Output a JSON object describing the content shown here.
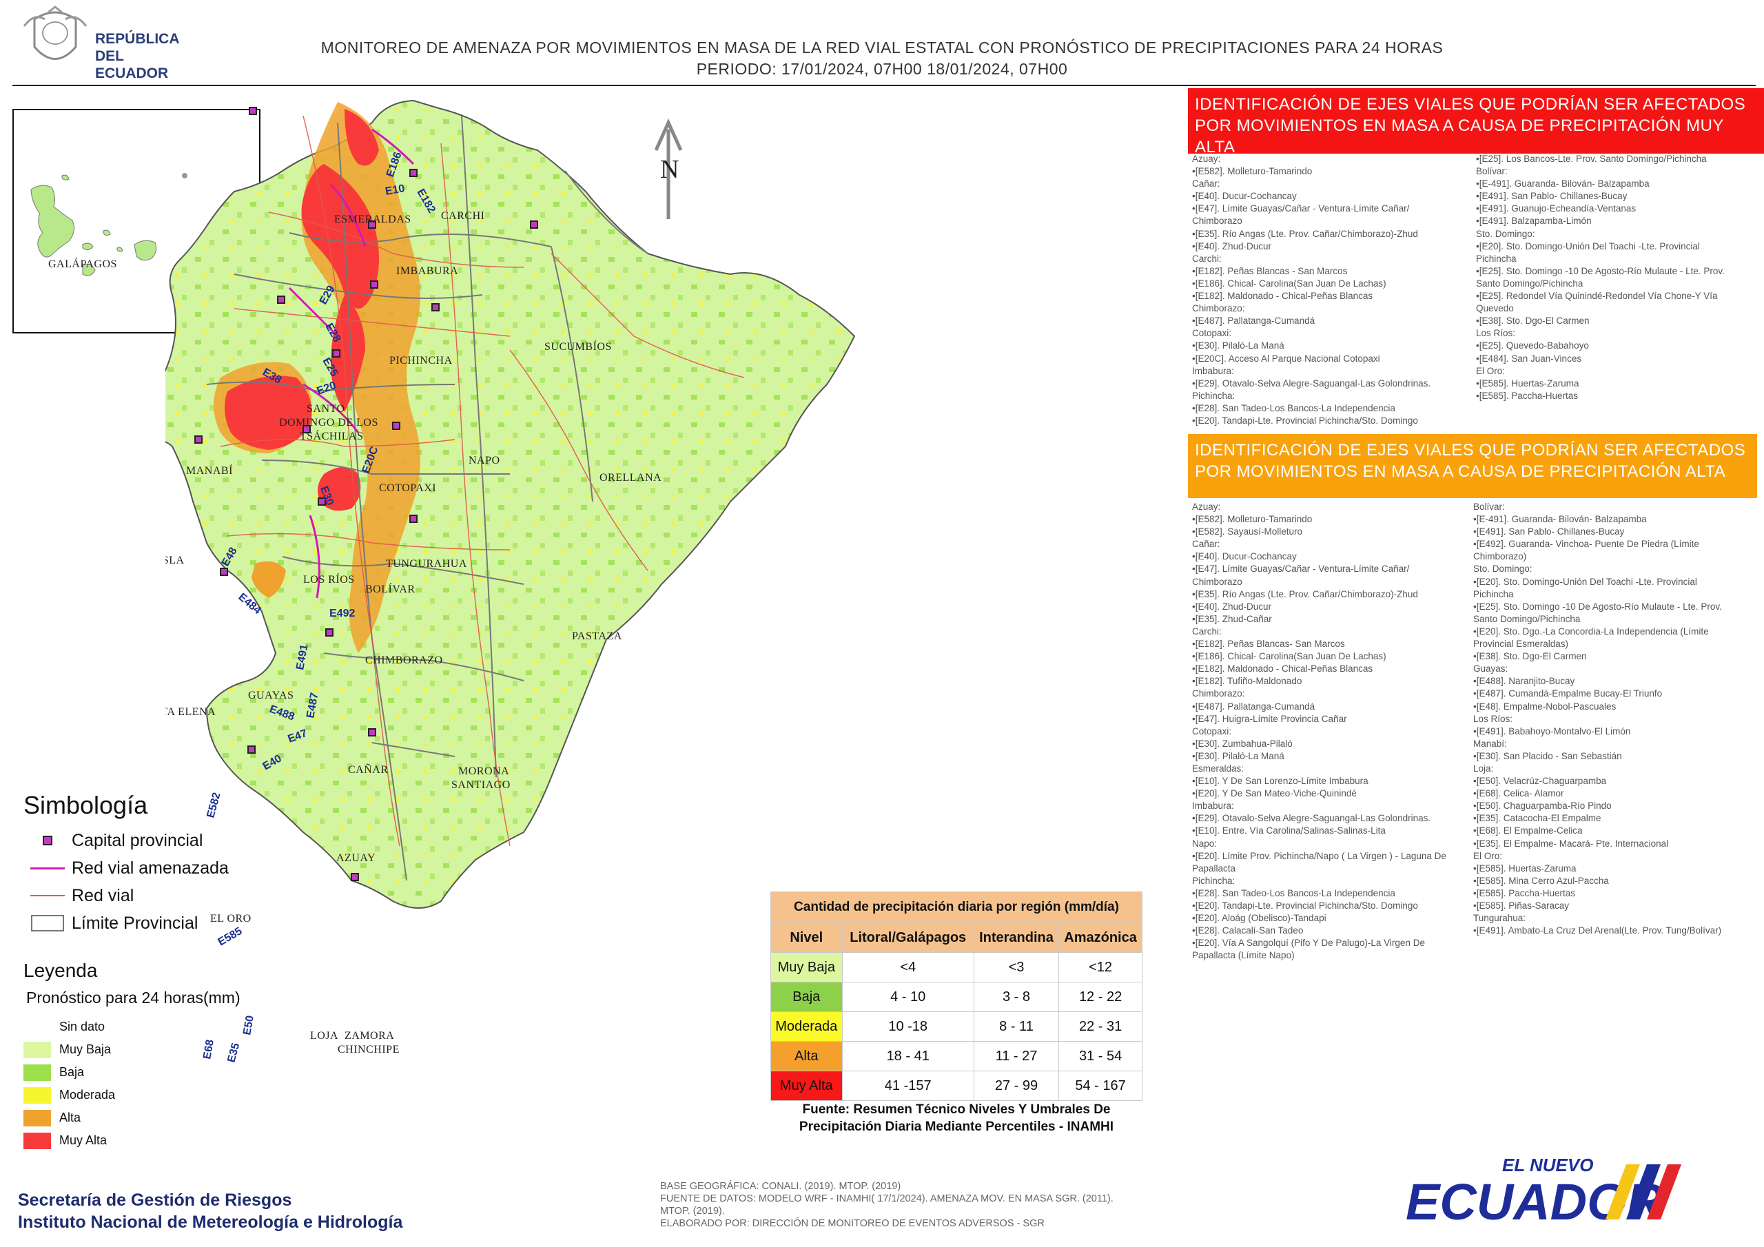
{
  "header": {
    "logo_text_line1": "REPÚBLICA",
    "logo_text_line2": "DEL ECUADOR",
    "title_line1": "MONITOREO DE AMENAZA POR MOVIMIENTOS EN MASA DE LA RED VIAL ESTATAL CON PRONÓSTICO DE PRECIPITACIONES PARA 24 HORAS",
    "title_line2": "PERIODO: 17/01/2024, 07H00 18/01/2024, 07H00"
  },
  "inset": {
    "label": "GALÁPAGOS"
  },
  "map": {
    "north_label": "N",
    "provinces": {
      "esmeraldas": "ESMERALDAS",
      "carchi": "CARCHI",
      "imbabura": "IMBABURA",
      "sucumbios": "SUCUMBÍOS",
      "pichincha": "PICHINCHA",
      "santo_domingo_1": "SANTO",
      "santo_domingo_2": "DOMINGO DE LOS",
      "santo_domingo_3": "TSÁCHILAS",
      "manabi": "MANABÍ",
      "napo": "NAPO",
      "orellana": "ORELLANA",
      "cotopaxi": "COTOPAXI",
      "isla": "ISLA",
      "tungurahua": "TUNGURAHUA",
      "los_rios": "LOS RÍOS",
      "bolivar": "BOLÍVAR",
      "pastaza": "PASTAZA",
      "chimborazo": "CHIMBORAZO",
      "santa_elena": "SANTA ELENA",
      "guayas": "GUAYAS",
      "canar": "CAÑAR",
      "morona_1": "MORONA",
      "morona_2": "SANTIAGO",
      "azuay": "AZUAY",
      "el_oro": "EL ORO",
      "loja": "LOJA",
      "zamora_1": "ZAMORA",
      "zamora_2": "CHINCHIPE"
    },
    "roads": {
      "e10": "E10",
      "e186": "E186",
      "e182": "E182",
      "e29": "E29",
      "e28": "E28",
      "e38": "E38",
      "e25": "E25",
      "e20": "E20",
      "e20c": "E20C",
      "e30": "E30",
      "e48": "E48",
      "e484": "E484",
      "e492": "E492",
      "e491": "E491",
      "e487": "E487",
      "e488": "E488",
      "e47": "E47",
      "e40": "E40",
      "e582": "E582",
      "e585": "E585",
      "e50": "E50",
      "e35": "E35",
      "e68": "E68"
    }
  },
  "symbology": {
    "title": "Simbología",
    "items": [
      {
        "label": "Capital provincial"
      },
      {
        "label": "Red vial amenazada"
      },
      {
        "label": "Red vial"
      },
      {
        "label": "Límite Provincial"
      }
    ]
  },
  "legend": {
    "title": "Leyenda",
    "subtitle": "Pronóstico para 24 horas(mm)",
    "items": [
      {
        "label": "Sin dato",
        "color": "#ffffff"
      },
      {
        "label": "Muy Baja",
        "color": "#dcf7a0"
      },
      {
        "label": "Baja",
        "color": "#9be04a"
      },
      {
        "label": "Moderada",
        "color": "#f5f530"
      },
      {
        "label": "Alta",
        "color": "#f0a22e"
      },
      {
        "label": "Muy Alta",
        "color": "#f83a3a"
      }
    ]
  },
  "precip_table": {
    "caption": "Cantidad de precipitación diaria por región (mm/día)",
    "headers": [
      "Nivel",
      "Litoral/Galápagos",
      "Interandina",
      "Amazónica"
    ],
    "rows": [
      {
        "level": "Muy Baja",
        "color": "#dcf7a0",
        "litoral": "<4",
        "interandina": "<3",
        "amazonica": "<12"
      },
      {
        "level": "Baja",
        "color": "#8dd04a",
        "litoral": "4 - 10",
        "interandina": "3 - 8",
        "amazonica": "12 - 22"
      },
      {
        "level": "Moderada",
        "color": "#fafa2a",
        "litoral": "10 -18",
        "interandina": "8 - 11",
        "amazonica": "22 - 31"
      },
      {
        "level": "Alta",
        "color": "#f5a02c",
        "litoral": "18 - 41",
        "interandina": "11 - 27",
        "amazonica": "31 - 54"
      },
      {
        "level": "Muy Alta",
        "color": "#f81818",
        "litoral": "41 -157",
        "interandina": "27 - 99",
        "amazonica": "54 - 167"
      }
    ],
    "source_line1": "Fuente: Resumen Técnico Niveles Y Umbrales De",
    "source_line2": "Precipitación Diaria Mediante Percentiles - INAMHI"
  },
  "panel_muy_alta": {
    "title": "IDENTIFICACIÓN DE EJES VIALES QUE PODRÍAN SER AFECTADOS POR MOVIMIENTOS EN MASA A CAUSA DE PRECIPITACIÓN MUY ALTA",
    "col1": [
      "Azuay:",
      "•[E582]. Molleturo-Tamarindo",
      "Cañar:",
      "•[E40]. Ducur-Cochancay",
      "•[E47]. Límite Guayas/Cañar - Ventura-Límite Cañar/",
      "Chimborazo",
      "•[E35]. Río Angas (Lte. Prov. Cañar/Chimborazo)-Zhud",
      "•[E40]. Zhud-Ducur",
      "Carchi:",
      "•[E182]. Peñas Blancas - San Marcos",
      "•[E186]. Chical- Carolina(San Juan De Lachas)",
      "•[E182]. Maldonado - Chical-Peñas Blancas",
      "Chimborazo:",
      "•[E487]. Pallatanga-Cumandá",
      "Cotopaxi:",
      "•[E30]. Pilaló-La Maná",
      "•[E20C]. Acceso Al Parque Nacional Cotopaxi",
      "Imbabura:",
      "•[E29]. Otavalo-Selva Alegre-Saguangal-Las Golondrinas.",
      "Pichincha:",
      "•[E28]. San Tadeo-Los Bancos-La Independencia",
      "•[E20]. Tandapi-Lte. Provincial Pichincha/Sto. Domingo"
    ],
    "col2": [
      "•[E25]. Los Bancos-Lte. Prov. Santo Domingo/Pichincha",
      "Bolívar:",
      "•[E-491]. Guaranda- Bilován- Balzapamba",
      "•[E491]. San Pablo- Chillanes-Bucay",
      "•[E491]. Guanujo-Echeandía-Ventanas",
      "•[E491]. Balzapamba-Limón",
      "Sto. Domingo:",
      "•[E20]. Sto. Domingo-Unión Del Toachi -Lte. Provincial",
      "Pichincha",
      "•[E25]. Sto. Domingo -10 De Agosto-Río Mulaute - Lte. Prov.",
      "Santo Domingo/Pichincha",
      "•[E25]. Redondel Vía Quinindé-Redondel Vía Chone-Y Vía",
      "Quevedo",
      "•[E38]. Sto. Dgo-El Carmen",
      "Los Ríos:",
      "•[E25]. Quevedo-Babahoyo",
      "•[E484]. San Juan-Vinces",
      "El Oro:",
      "•[E585]. Huertas-Zaruma",
      "•[E585]. Paccha-Huertas"
    ]
  },
  "panel_alta": {
    "title": "IDENTIFICACIÓN DE EJES VIALES QUE PODRÍAN SER AFECTADOS POR MOVIMIENTOS EN MASA A CAUSA DE PRECIPITACIÓN ALTA",
    "col1": [
      "Azuay:",
      "•[E582]. Molleturo-Tamarindo",
      "•[E582]. Sayausí-Molleturo",
      "Cañar:",
      "•[E40]. Ducur-Cochancay",
      "•[E47]. Límite Guayas/Cañar - Ventura-Límite Cañar/",
      "Chimborazo",
      "•[E35]. Río Angas (Lte. Prov. Cañar/Chimborazo)-Zhud",
      "•[E40]. Zhud-Ducur",
      "•[E35]. Zhud-Cañar",
      "Carchi:",
      "•[E182]. Peñas Blancas- San Marcos",
      "•[E186]. Chical- Carolina(San Juan De Lachas)",
      "•[E182]. Maldonado - Chical-Peñas Blancas",
      "•[E182]. Tufiño-Maldonado",
      "Chimborazo:",
      "•[E487]. Pallatanga-Cumandá",
      "•[E47]. Huigra-Límite Provincia Cañar",
      "Cotopaxi:",
      "•[E30]. Zumbahua-Pilaló",
      "•[E30]. Pilaló-La Maná",
      "Esmeraldas:",
      "•[E10]. Y De San Lorenzo-Límite Imbabura",
      "•[E20]. Y De San Mateo-Viche-Quinindé",
      "Imbabura:",
      "•[E29]. Otavalo-Selva Alegre-Saguangal-Las Golondrinas.",
      "•[E10]. Entre. Vía Carolina/Salinas-Salinas-Lita",
      "Napo:",
      "•[E20]. Límite Prov. Pichincha/Napo ( La Virgen ) - Laguna De",
      "Papallacta",
      "Pichincha:",
      "•[E28]. San Tadeo-Los Bancos-La Independencia",
      "•[E20]. Tandapi-Lte. Provincial Pichincha/Sto. Domingo",
      "•[E20]. Aloág (Obelisco)-Tandapi",
      "•[E28]. Calacalí-San Tadeo",
      "•[E20]. Vía A Sangolquí (Pifo Y De Palugo)-La Virgen De",
      "Papallacta (Límite Napo)"
    ],
    "col2": [
      "Bolívar:",
      "•[E-491]. Guaranda- Bilován- Balzapamba",
      "•[E491]. San Pablo- Chillanes-Bucay",
      "•[E492]. Guaranda- Vinchoa- Puente De Piedra (Límite",
      "Chimborazo)",
      "Sto. Domingo:",
      "•[E20]. Sto. Domingo-Unión Del Toachi -Lte. Provincial",
      "Pichincha",
      "•[E25]. Sto. Domingo -10 De Agosto-Río Mulaute - Lte. Prov.",
      "Santo Domingo/Pichincha",
      "•[E20]. Sto. Dgo.-La Concordia-La Independencia (Límite",
      "Provincial Esmeraldas)",
      "•[E38]. Sto. Dgo-El Carmen",
      "Guayas:",
      "•[E488]. Naranjito-Bucay",
      "•[E487]. Cumandá-Empalme Bucay-El Triunfo",
      "•[E48]. Empalme-Nobol-Pascuales",
      "Los Ríos:",
      "•[E491]. Babahoyo-Montalvo-El Limón",
      "Manabí:",
      "•[E30]. San Placido - San Sebastián",
      "Loja:",
      "•[E50]. Velacrúz-Chaguarpamba",
      "•[E68]. Celica- Alamor",
      "•[E50]. Chaguarpamba-Río Pindo",
      "•[E35]. Catacocha-El Empalme",
      "•[E68]. El Empalme-Celica",
      "•[E35]. El Empalme- Macará- Pte. Internacional",
      "El Oro:",
      "•[E585]. Huertas-Zaruma",
      "•[E585]. Mina Cerro Azul-Paccha",
      "•[E585]. Paccha-Huertas",
      "•[E585]. Piñas-Saracay",
      "Tungurahua:",
      "•[E491]. Ambato-La Cruz Del Arenal(Lte. Prov. Tung/Bolívar)"
    ]
  },
  "footer": {
    "org_line1": "Secretaría de Gestión de Riesgos",
    "org_line2": "Instituto Nacional de Metereología e Hidrología",
    "base_line1": "BASE GEOGRÁFICA: CONALI. (2019). MTOP. (2019)",
    "base_line2": "FUENTE DE DATOS: MODELO WRF - INAMHI( 17/1/2024). AMENAZA MOV. EN MASA SGR. (2011).",
    "base_line3": "MTOP. (2019).",
    "base_line4": "ELABORADO POR: DIRECCIÓN DE MONITOREO DE EVENTOS ADVERSOS - SGR",
    "brand_top": "EL NUEVO",
    "brand_main": "ECUADOR"
  }
}
